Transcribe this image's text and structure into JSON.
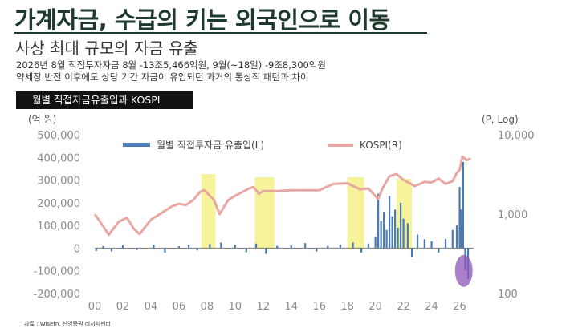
{
  "header": {
    "title": "가계자금, 수급의 키는 외국인으로 이동",
    "subtitle": "사상 최대 규모의 자금 유출",
    "line1": "2026년 8월 직접투자자금 8월 -13조5,466억원, 9월(~18일) -9조8,300억원",
    "line2": "약세장 반전 이후에도 상당 기간 자금이 유입되던 과거의 통상적 패턴과 차이"
  },
  "chart_title": "월별 직접자금유출입과 KOSPI",
  "source": "자료 : Wisefn, 신영증권 리서치센터",
  "colors": {
    "bars": "#4a7bb7",
    "kospi": "#e8a7a3",
    "highlight": "#f7f39a",
    "circle": "#8e55b8"
  },
  "chart_data": {
    "type": "bar+line",
    "left_axis": {
      "unit": "(억 원)",
      "ylim": [
        -200000,
        500000
      ],
      "ticks": [
        500000,
        400000,
        300000,
        200000,
        100000,
        0,
        -100000,
        -200000
      ],
      "tick_labels": [
        "500,000",
        "400,000",
        "300,000",
        "200,000",
        "100,000",
        "0",
        "-100,000",
        "-200,000"
      ]
    },
    "right_axis": {
      "unit": "(P, Log)",
      "scale": "log",
      "ylim": [
        100,
        10000
      ],
      "ticks": [
        10000,
        1000,
        100
      ],
      "tick_labels": [
        "10,000",
        "1,000",
        "100"
      ]
    },
    "x_axis": {
      "range": [
        2000,
        2027
      ],
      "ticks": [
        2000,
        2002,
        2004,
        2006,
        2008,
        2010,
        2012,
        2014,
        2016,
        2018,
        2020,
        2022,
        2024,
        2026
      ],
      "tick_labels": [
        "00",
        "02",
        "04",
        "06",
        "08",
        "10",
        "12",
        "14",
        "16",
        "18",
        "20",
        "22",
        "24",
        "26"
      ]
    },
    "legend": {
      "placement": "top",
      "bars": "월별 직접투자금 유출입(L)",
      "line": "KOSPI(R)"
    },
    "highlight_periods": [
      [
        2007.6,
        2008.6
      ],
      [
        2011.4,
        2012.8
      ],
      [
        2018.0,
        2019.2
      ],
      [
        2021.5,
        2022.6
      ]
    ],
    "annotation_circle": {
      "x": 2026.3,
      "y": -100000
    },
    "kospi": {
      "x": [
        2000.0,
        2000.5,
        2001.0,
        2001.7,
        2002.3,
        2002.8,
        2003.2,
        2004.0,
        2005.0,
        2005.5,
        2006.0,
        2006.5,
        2007.0,
        2007.5,
        2007.8,
        2008.5,
        2008.9,
        2009.5,
        2010.0,
        2011.0,
        2011.3,
        2011.7,
        2012.0,
        2013.0,
        2014.0,
        2015.0,
        2016.0,
        2017.0,
        2018.0,
        2018.9,
        2019.5,
        2020.2,
        2020.5,
        2021.0,
        2021.5,
        2022.0,
        2022.8,
        2023.5,
        2024.0,
        2024.5,
        2025.0,
        2025.5,
        2025.8,
        2026.0,
        2026.2,
        2026.5,
        2026.8
      ],
      "y": [
        1000,
        750,
        550,
        800,
        900,
        650,
        560,
        850,
        1100,
        1250,
        1350,
        1300,
        1500,
        1900,
        2000,
        1500,
        1000,
        1500,
        1700,
        2100,
        2200,
        1800,
        1950,
        1950,
        2000,
        2000,
        2000,
        2400,
        2450,
        2050,
        2100,
        1550,
        2100,
        3000,
        3200,
        2700,
        2250,
        2550,
        2500,
        2800,
        2400,
        2600,
        3300,
        3600,
        5300,
        4800,
        5000
      ]
    },
    "bars": {
      "x": [
        2000.1,
        2000.6,
        2001.2,
        2002.0,
        2003.0,
        2004.2,
        2005.0,
        2006.0,
        2006.7,
        2007.3,
        2008.2,
        2009.0,
        2010.0,
        2010.8,
        2011.5,
        2012.2,
        2013.0,
        2014.0,
        2015.0,
        2015.8,
        2016.6,
        2017.5,
        2018.4,
        2019.0,
        2019.5,
        2020.0,
        2020.2,
        2020.4,
        2020.6,
        2020.8,
        2021.0,
        2021.2,
        2021.4,
        2021.6,
        2021.8,
        2022.0,
        2022.3,
        2022.6,
        2023.0,
        2023.5,
        2024.0,
        2024.5,
        2025.0,
        2025.5,
        2025.8,
        2026.0,
        2026.1,
        2026.25,
        2026.4,
        2026.6
      ],
      "values": [
        -12000,
        9000,
        -15000,
        12000,
        -8000,
        15000,
        -20000,
        8000,
        14000,
        -10000,
        18000,
        25000,
        15000,
        -18000,
        20000,
        -25000,
        10000,
        12000,
        22000,
        -15000,
        10000,
        15000,
        25000,
        -20000,
        20000,
        50000,
        240000,
        120000,
        160000,
        80000,
        230000,
        140000,
        170000,
        90000,
        200000,
        130000,
        110000,
        -40000,
        60000,
        40000,
        30000,
        -20000,
        40000,
        80000,
        100000,
        270000,
        170000,
        380000,
        -98300,
        -135466
      ]
    }
  }
}
